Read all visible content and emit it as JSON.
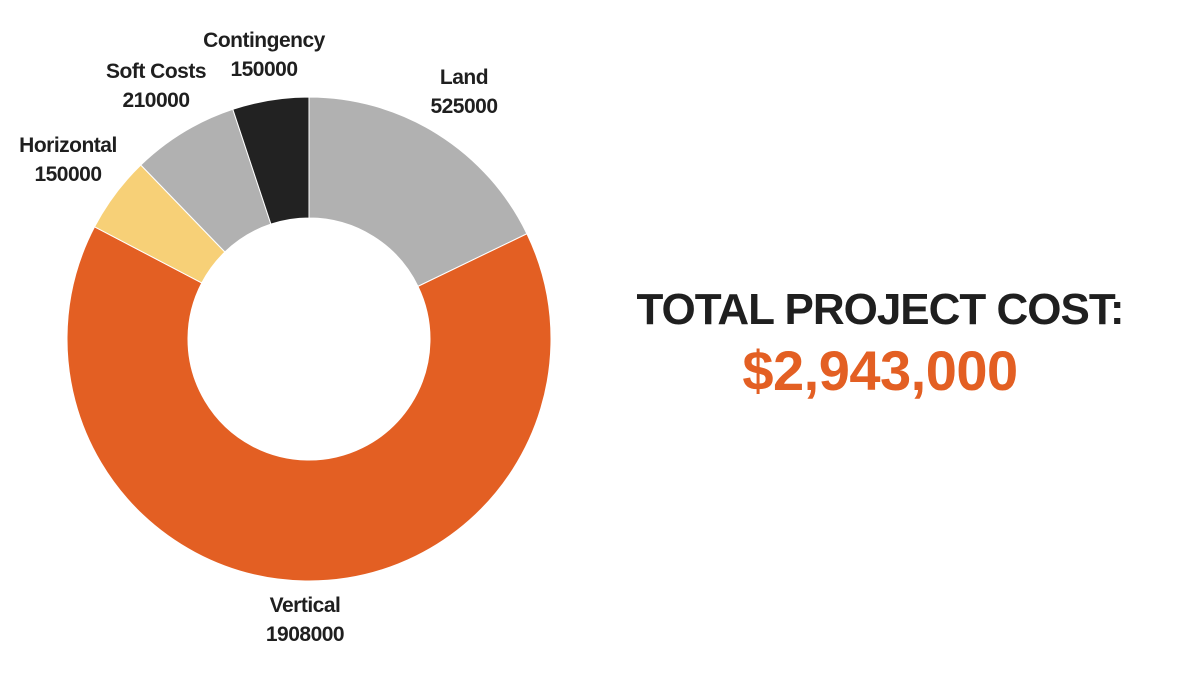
{
  "chart_data": {
    "type": "pie",
    "variant": "donut",
    "categories": [
      "Land",
      "Vertical",
      "Horizontal",
      "Soft Costs",
      "Contingency"
    ],
    "values": [
      525000,
      1908000,
      150000,
      210000,
      150000
    ],
    "colors": [
      "#b1b1b1",
      "#e35f23",
      "#f7d077",
      "#b1b1b1",
      "#222222"
    ],
    "title": "",
    "data_labels": [
      {
        "name": "Land",
        "value": "525000"
      },
      {
        "name": "Vertical",
        "value": "1908000"
      },
      {
        "name": "Horizontal",
        "value": "150000"
      },
      {
        "name": "Soft Costs",
        "value": "210000"
      },
      {
        "name": "Contingency",
        "value": "150000"
      }
    ]
  },
  "summary": {
    "label": "TOTAL PROJECT COST:",
    "value": "$2,943,000",
    "value_color": "#e35f23"
  }
}
